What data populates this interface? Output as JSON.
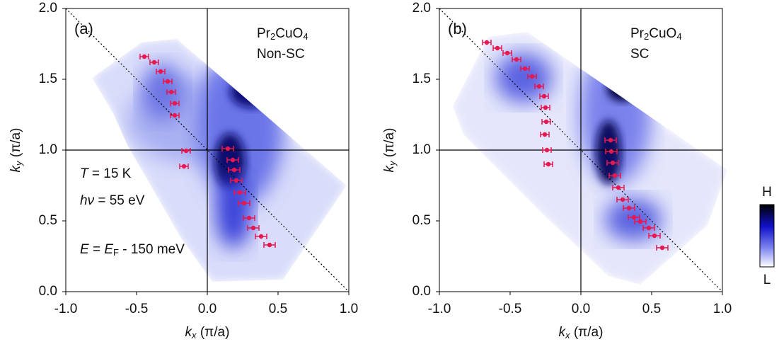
{
  "chart_data": [
    {
      "type": "scatter",
      "panel_label": "(a)",
      "compound": [
        "Pr",
        "2",
        "CuO",
        "4"
      ],
      "sample": "Non-SC",
      "annotations": [
        [
          "T",
          " = 15 K"
        ],
        [
          "hν",
          " = 55 eV"
        ],
        [
          "E",
          " = ",
          "E",
          "F",
          " - 150 meV"
        ]
      ],
      "xlabel": [
        "k",
        "x",
        " (π/a)"
      ],
      "ylabel": [
        "k",
        "y",
        " (π/a)"
      ],
      "xlim": [
        -1,
        1
      ],
      "ylim": [
        0,
        2
      ],
      "xticks": [
        {
          "value": -1,
          "label": "-1.0"
        },
        {
          "value": -0.5,
          "label": "-0.5"
        },
        {
          "value": 0,
          "label": "0.0"
        },
        {
          "value": 0.5,
          "label": "0.5"
        },
        {
          "value": 1,
          "label": "1.0"
        }
      ],
      "yticks": [
        {
          "value": 0,
          "label": "0.0"
        },
        {
          "value": 0.5,
          "label": "0.5"
        },
        {
          "value": 1,
          "label": "1.0"
        },
        {
          "value": 1.5,
          "label": "1.5"
        },
        {
          "value": 2,
          "label": "2.0"
        }
      ],
      "reference_lines": {
        "x": 0,
        "y": 1
      },
      "diagonal": [
        [
          -1,
          2
        ],
        [
          1,
          0
        ]
      ],
      "series": [
        {
          "color": "#e8174f",
          "x": [
            -0.445,
            -0.375,
            -0.33,
            -0.28,
            -0.255,
            -0.23,
            -0.23,
            -0.15,
            -0.165,
            0.145,
            0.18,
            0.19,
            0.205,
            0.23,
            0.26,
            0.295,
            0.325,
            0.38,
            0.44
          ],
          "y": [
            1.66,
            1.62,
            1.555,
            1.485,
            1.41,
            1.33,
            1.245,
            0.995,
            0.885,
            1.01,
            0.93,
            0.86,
            0.785,
            0.7,
            0.625,
            0.52,
            0.45,
            0.39,
            0.33
          ],
          "xerr": [
            0.03,
            0.03,
            0.03,
            0.03,
            0.03,
            0.03,
            0.03,
            0.03,
            0.03,
            0.04,
            0.04,
            0.04,
            0.04,
            0.04,
            0.04,
            0.04,
            0.04,
            0.04,
            0.04
          ]
        }
      ]
    },
    {
      "type": "scatter",
      "panel_label": "(b)",
      "compound": [
        "Pr",
        "2",
        "CuO",
        "4"
      ],
      "sample": "SC",
      "annotations": [],
      "xlabel": [
        "k",
        "x",
        " (π/a)"
      ],
      "ylabel": [
        "k",
        "y",
        " (π/a)"
      ],
      "xlim": [
        -1,
        1
      ],
      "ylim": [
        0,
        2
      ],
      "xticks": [
        {
          "value": -1,
          "label": "-1.0"
        },
        {
          "value": -0.5,
          "label": "-0.5"
        },
        {
          "value": 0,
          "label": "0.0"
        },
        {
          "value": 0.5,
          "label": "0.5"
        },
        {
          "value": 1,
          "label": "1.0"
        }
      ],
      "yticks": [
        {
          "value": 0,
          "label": "0.0"
        },
        {
          "value": 0.5,
          "label": "0.5"
        },
        {
          "value": 1,
          "label": "1.0"
        },
        {
          "value": 1.5,
          "label": "1.5"
        },
        {
          "value": 2,
          "label": "2.0"
        }
      ],
      "reference_lines": {
        "x": 0,
        "y": 1
      },
      "diagonal": [
        [
          -1,
          2
        ],
        [
          1,
          0
        ]
      ],
      "series": [
        {
          "color": "#e8174f",
          "x": [
            -0.665,
            -0.59,
            -0.52,
            -0.455,
            -0.395,
            -0.345,
            -0.295,
            -0.26,
            -0.25,
            -0.245,
            -0.255,
            -0.24,
            -0.23,
            0.21,
            0.215,
            0.225,
            0.24,
            0.265,
            0.295,
            0.34,
            0.375,
            0.42,
            0.48,
            0.52,
            0.575
          ],
          "y": [
            1.76,
            1.72,
            1.685,
            1.64,
            1.575,
            1.52,
            1.45,
            1.38,
            1.3,
            1.2,
            1.11,
            1.0,
            0.9,
            1.07,
            0.99,
            0.91,
            0.82,
            0.735,
            0.65,
            0.59,
            0.525,
            0.495,
            0.45,
            0.395,
            0.31
          ],
          "xerr": [
            0.03,
            0.03,
            0.03,
            0.03,
            0.03,
            0.03,
            0.03,
            0.03,
            0.03,
            0.03,
            0.03,
            0.03,
            0.03,
            0.04,
            0.04,
            0.04,
            0.04,
            0.04,
            0.04,
            0.04,
            0.04,
            0.04,
            0.04,
            0.04,
            0.04
          ]
        }
      ]
    }
  ],
  "colorbar": {
    "high_label": "H",
    "low_label": "L"
  }
}
